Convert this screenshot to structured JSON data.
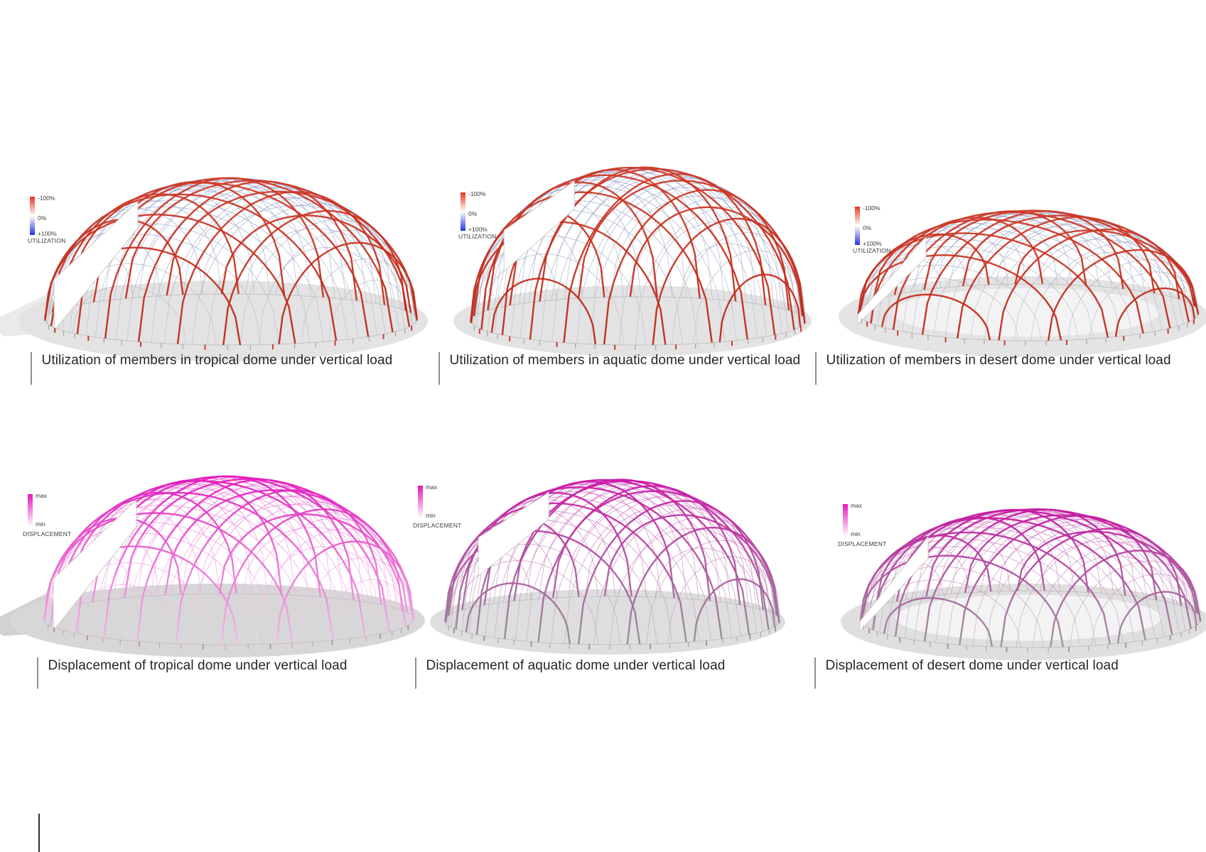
{
  "panels": [
    {
      "caption": "Utilization of members in tropical dome under vertical load",
      "legend": {
        "top_label": "-100%",
        "mid_label": "0%",
        "bottom_label": "+100%",
        "title": "UTILIZATION",
        "gradient": [
          "#e8341f",
          "#ffffff",
          "#2633e6"
        ]
      },
      "render": {
        "mode": "utilization",
        "rib_top": "#cf3a28",
        "rib_bottom": "#bb2212",
        "lattice_top": "#8f9dca",
        "lattice_bottom": "#c7c7c9",
        "feet_major": "#c0281c",
        "feet_minor": "#9c9c9c"
      }
    },
    {
      "caption": "Utilization of members in aquatic dome under vertical load",
      "legend": {
        "top_label": "-100%",
        "mid_label": "0%",
        "bottom_label": "+100%",
        "title": "UTILIZATION",
        "gradient": [
          "#e8341f",
          "#ffffff",
          "#2633e6"
        ]
      },
      "render": {
        "mode": "utilization",
        "rib_top": "#cf3a28",
        "rib_bottom": "#bb2212",
        "lattice_top": "#8f9dca",
        "lattice_bottom": "#c7c7c9",
        "feet_major": "#c0281c",
        "feet_minor": "#9c9c9c"
      }
    },
    {
      "caption": "Utilization of members in desert dome under vertical load",
      "legend": {
        "top_label": "-100%",
        "mid_label": "0%",
        "bottom_label": "+100%",
        "title": "UTILIZATION",
        "gradient": [
          "#e8341f",
          "#ffffff",
          "#2633e6"
        ]
      },
      "render": {
        "mode": "utilization",
        "rib_top": "#cf3a28",
        "rib_bottom": "#bb2212",
        "lattice_top": "#959fc6",
        "lattice_bottom": "#c9c9cb",
        "feet_major": "#c0281c",
        "feet_minor": "#9c9c9c"
      }
    },
    {
      "caption": "Displacement of tropical dome under vertical load",
      "legend": {
        "top_label": "max",
        "bottom_label": "min",
        "title": "DISPLACEMENT",
        "gradient": [
          "#e318bb",
          "#ffffff"
        ]
      },
      "render": {
        "mode": "displacement",
        "rib_top": "#e114bb",
        "rib_bottom": "#f1bfe7",
        "lattice_top": "#ec62d2",
        "lattice_bottom": "#f5dcf0",
        "feet_major": "#b48aa9",
        "feet_minor": "#b9a3b2"
      }
    },
    {
      "caption": "Displacement of aquatic dome under vertical load",
      "legend": {
        "top_label": "max",
        "bottom_label": "min",
        "title": "DISPLACEMENT",
        "gradient": [
          "#e318bb",
          "#ffffff"
        ]
      },
      "render": {
        "mode": "displacement",
        "rib_top": "#cf11a9",
        "rib_bottom": "#8f8f94",
        "lattice_top": "#d55fc1",
        "lattice_bottom": "#bbbbbe",
        "feet_major": "#8f8f8f",
        "feet_minor": "#a5a5a5"
      }
    },
    {
      "caption": "Displacement of desert dome under vertical load",
      "legend": {
        "top_label": "max",
        "bottom_label": "min",
        "title": "DISPLACEMENT",
        "gradient": [
          "#e318bb",
          "#ffffff"
        ]
      },
      "render": {
        "mode": "displacement",
        "rib_top": "#c712a1",
        "rib_bottom": "#94949a",
        "lattice_top": "#d06fc1",
        "lattice_bottom": "#bfbfc2",
        "feet_major": "#8f8f8f",
        "feet_minor": "#a5a5a5"
      }
    }
  ]
}
